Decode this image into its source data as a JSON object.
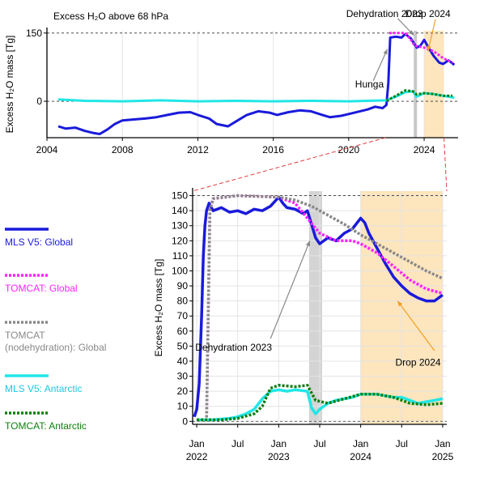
{
  "chart_data": [
    {
      "type": "line",
      "title": "Excess H₂O above 68 hPa",
      "ylabel": "Excess H₂O  mass [Tg]",
      "xlim": [
        2004,
        2025.8
      ],
      "ylim": [
        -80,
        155
      ],
      "yticks": [
        {
          "v": 150,
          "label": "150"
        },
        {
          "v": 0,
          "label": "0"
        }
      ],
      "xticks": [
        {
          "v": 2004,
          "label": "2004"
        },
        {
          "v": 2008,
          "label": "2008"
        },
        {
          "v": 2012,
          "label": "2012"
        },
        {
          "v": 2016,
          "label": "2016"
        },
        {
          "v": 2020,
          "label": "2020"
        },
        {
          "v": 2024,
          "label": "2024"
        }
      ],
      "dashed_levels": [
        150,
        0
      ],
      "grid": "vertical",
      "shading": [
        {
          "name": "dehydration",
          "x0": 2023.45,
          "x1": 2023.62,
          "color": "#c8c8c8"
        },
        {
          "name": "drop",
          "x0": 2024.0,
          "x1": 2025.05,
          "color": "#fde5bd"
        }
      ],
      "series": [
        {
          "name": "MLS V5: Global",
          "color": "#1a1adb",
          "style": "solid",
          "x": [
            2004.6,
            2005.0,
            2005.5,
            2006.0,
            2006.5,
            2006.8,
            2007.2,
            2007.6,
            2008.0,
            2008.6,
            2009.2,
            2009.8,
            2010.4,
            2011.0,
            2011.6,
            2012.0,
            2012.6,
            2013.0,
            2013.6,
            2014.0,
            2014.6,
            2015.2,
            2015.8,
            2016.2,
            2016.8,
            2017.4,
            2018.0,
            2018.6,
            2019.0,
            2019.6,
            2020.0,
            2020.6,
            2021.0,
            2021.4,
            2021.8,
            2022.0,
            2022.1,
            2022.2,
            2022.5,
            2022.8,
            2023.0,
            2023.3,
            2023.5,
            2023.6,
            2023.8,
            2024.0,
            2024.2,
            2024.5,
            2024.8,
            2025.0,
            2025.3,
            2025.6
          ],
          "y": [
            -55,
            -60,
            -58,
            -65,
            -70,
            -72,
            -62,
            -50,
            -42,
            -40,
            -38,
            -35,
            -30,
            -25,
            -24,
            -30,
            -38,
            -50,
            -55,
            -45,
            -30,
            -22,
            -25,
            -30,
            -24,
            -20,
            -22,
            -30,
            -35,
            -32,
            -28,
            -22,
            -18,
            -12,
            -15,
            -8,
            40,
            140,
            142,
            140,
            148,
            138,
            125,
            118,
            122,
            135,
            120,
            100,
            85,
            82,
            90,
            80
          ]
        },
        {
          "name": "TOMCAT: Global",
          "color": "#ff22ff",
          "style": "dotted",
          "x": [
            2022.15,
            2022.3,
            2023.0,
            2023.3,
            2023.5,
            2024.0,
            2024.5,
            2025.0,
            2025.5
          ],
          "y": [
            150,
            150,
            150,
            135,
            122,
            118,
            110,
            95,
            85
          ]
        },
        {
          "name": "MLS V5: Antarctic",
          "color": "#22e6e6",
          "style": "solid",
          "x": [
            2004.6,
            2006,
            2008,
            2010,
            2012,
            2014,
            2016,
            2018,
            2020,
            2022,
            2022.5,
            2023.0,
            2023.4,
            2023.6,
            2024.0,
            2024.5,
            2025.0,
            2025.6
          ],
          "y": [
            4,
            1,
            0,
            2,
            0,
            1,
            0,
            1,
            0,
            2,
            10,
            20,
            22,
            10,
            18,
            16,
            12,
            8
          ]
        },
        {
          "name": "TOMCAT: Antarctic",
          "color": "#0f7f0f",
          "style": "dotted",
          "x": [
            2022.0,
            2022.5,
            2023.0,
            2023.4,
            2023.6,
            2024.0,
            2024.5,
            2025.0,
            2025.5
          ],
          "y": [
            1,
            12,
            24,
            22,
            15,
            18,
            16,
            12,
            12
          ]
        }
      ],
      "annotations": [
        {
          "text": "Hunga",
          "x": 2021.1,
          "y": 30
        },
        {
          "text": "Dehydration 2023",
          "x": 2021.9,
          "y": 185
        },
        {
          "text": "Drop 2024",
          "x": 2024.2,
          "y": 185
        }
      ]
    },
    {
      "type": "line",
      "title": "",
      "ylabel": "Excess H₂O  mass [Tg]",
      "xlim": [
        2021.95,
        2025.05
      ],
      "ylim": [
        -2,
        153
      ],
      "yticks": [
        {
          "v": 150,
          "label": "150"
        },
        {
          "v": 140,
          "label": "140"
        },
        {
          "v": 130,
          "label": "130"
        },
        {
          "v": 120,
          "label": "120"
        },
        {
          "v": 110,
          "label": "110"
        },
        {
          "v": 100,
          "label": "100"
        },
        {
          "v": 90,
          "label": "90"
        },
        {
          "v": 80,
          "label": "80"
        },
        {
          "v": 70,
          "label": "70"
        },
        {
          "v": 60,
          "label": "60"
        },
        {
          "v": 50,
          "label": "50"
        },
        {
          "v": 40,
          "label": "40"
        },
        {
          "v": 30,
          "label": "30"
        },
        {
          "v": 20,
          "label": "20"
        },
        {
          "v": 10,
          "label": "10"
        },
        {
          "v": 0,
          "label": "0"
        }
      ],
      "xticks": [
        {
          "v": 2022.0,
          "line1": "Jan",
          "line2": "2022"
        },
        {
          "v": 2022.5,
          "line1": "Jul",
          "line2": ""
        },
        {
          "v": 2023.0,
          "line1": "Jan",
          "line2": "2023"
        },
        {
          "v": 2023.5,
          "line1": "Jul",
          "line2": ""
        },
        {
          "v": 2024.0,
          "line1": "Jan",
          "line2": "2024"
        },
        {
          "v": 2024.5,
          "line1": "Jul",
          "line2": ""
        },
        {
          "v": 2025.0,
          "line1": "Jan",
          "line2": "2025"
        }
      ],
      "dashed_levels": [
        150,
        0
      ],
      "grid": "both",
      "shading": [
        {
          "name": "dehydration",
          "x0": 2023.37,
          "x1": 2023.53,
          "color": "#d4d4d4"
        },
        {
          "name": "drop",
          "x0": 2024.0,
          "x1": 2025.0,
          "color": "#fde5bd"
        }
      ],
      "series": [
        {
          "name": "MLS V5: Global",
          "color": "#1a1adb",
          "style": "solid",
          "x": [
            2021.97,
            2022.0,
            2022.03,
            2022.06,
            2022.08,
            2022.1,
            2022.12,
            2022.15,
            2022.2,
            2022.3,
            2022.4,
            2022.5,
            2022.6,
            2022.7,
            2022.8,
            2022.9,
            2023.0,
            2023.05,
            2023.1,
            2023.2,
            2023.3,
            2023.35,
            2023.4,
            2023.45,
            2023.5,
            2023.6,
            2023.7,
            2023.8,
            2023.9,
            2024.0,
            2024.05,
            2024.1,
            2024.2,
            2024.3,
            2024.4,
            2024.5,
            2024.6,
            2024.7,
            2024.8,
            2024.9,
            2025.0
          ],
          "y": [
            3,
            8,
            25,
            70,
            110,
            130,
            140,
            145,
            140,
            142,
            139,
            140,
            138,
            141,
            140,
            143,
            149,
            145,
            142,
            141,
            138,
            140,
            131,
            122,
            118,
            122,
            120,
            125,
            128,
            135,
            132,
            125,
            115,
            105,
            96,
            90,
            85,
            82,
            80,
            80,
            84
          ]
        },
        {
          "name": "TOMCAT: Global",
          "color": "#ff22ff",
          "style": "dotted",
          "x": [
            2022.0,
            2022.12,
            2022.16,
            2022.2,
            2022.5,
            2023.0,
            2023.2,
            2023.35,
            2023.5,
            2023.7,
            2023.9,
            2024.0,
            2024.2,
            2024.4,
            2024.6,
            2024.8,
            2025.0
          ],
          "y": [
            1,
            1,
            140,
            148,
            150,
            149,
            145,
            135,
            125,
            120,
            120,
            118,
            112,
            103,
            94,
            88,
            85
          ]
        },
        {
          "name": "TOMCAT (nodehydration): Global",
          "color": "#888888",
          "style": "dotted",
          "x": [
            2022.0,
            2022.12,
            2022.16,
            2022.2,
            2022.5,
            2023.0,
            2023.2,
            2023.4,
            2023.6,
            2023.8,
            2024.0,
            2024.2,
            2024.4,
            2024.6,
            2024.8,
            2025.0
          ],
          "y": [
            1,
            1,
            140,
            148,
            150,
            149,
            147,
            143,
            137,
            131,
            124,
            118,
            112,
            106,
            100,
            95
          ]
        },
        {
          "name": "MLS V5: Antarctic",
          "color": "#22e6e6",
          "style": "solid",
          "x": [
            2022.0,
            2022.2,
            2022.4,
            2022.5,
            2022.6,
            2022.7,
            2022.8,
            2022.9,
            2023.0,
            2023.1,
            2023.2,
            2023.35,
            2023.4,
            2023.45,
            2023.5,
            2023.6,
            2023.7,
            2023.8,
            2023.9,
            2024.0,
            2024.2,
            2024.4,
            2024.5,
            2024.6,
            2024.7,
            2024.8,
            2024.9,
            2025.0
          ],
          "y": [
            1,
            1,
            2,
            3,
            5,
            8,
            15,
            20,
            21,
            20,
            21,
            20,
            9,
            5,
            8,
            12,
            14,
            15,
            16,
            18,
            18,
            16,
            16,
            14,
            12,
            13,
            14,
            15
          ]
        },
        {
          "name": "TOMCAT: Antarctic",
          "color": "#0f7f0f",
          "style": "dotted",
          "x": [
            2022.0,
            2022.3,
            2022.5,
            2022.7,
            2022.8,
            2022.9,
            2023.0,
            2023.2,
            2023.35,
            2023.45,
            2023.6,
            2023.8,
            2024.0,
            2024.2,
            2024.4,
            2024.6,
            2024.8,
            2025.0
          ],
          "y": [
            1,
            1,
            2,
            5,
            10,
            22,
            24,
            23,
            24,
            14,
            12,
            15,
            18,
            18,
            16,
            12,
            11,
            12
          ]
        }
      ],
      "annotations": [
        {
          "text": "Dehydration 2023",
          "x": 2022.45,
          "y": 47
        },
        {
          "text": "Drop 2024",
          "x": 2024.7,
          "y": 37
        }
      ]
    }
  ],
  "legend": [
    {
      "label": "MLS V5: Global",
      "color": "#1a1adb",
      "style": "solid",
      "text_color": "#1a1adb"
    },
    {
      "label": "TOMCAT: Global",
      "color": "#ff22ff",
      "style": "dotted",
      "text_color": "#ff22ff"
    },
    {
      "label": "TOMCAT",
      "label2": "(nodehydration): Global",
      "color": "#888888",
      "style": "dotted",
      "text_color": "#888888"
    },
    {
      "label": "MLS V5: Antarctic",
      "color": "#22e6e6",
      "style": "solid",
      "text_color": "#1ec8e0"
    },
    {
      "label": "TOMCAT: Antarctic",
      "color": "#0f7f0f",
      "style": "dotted",
      "text_color": "#0f7f0f"
    }
  ]
}
